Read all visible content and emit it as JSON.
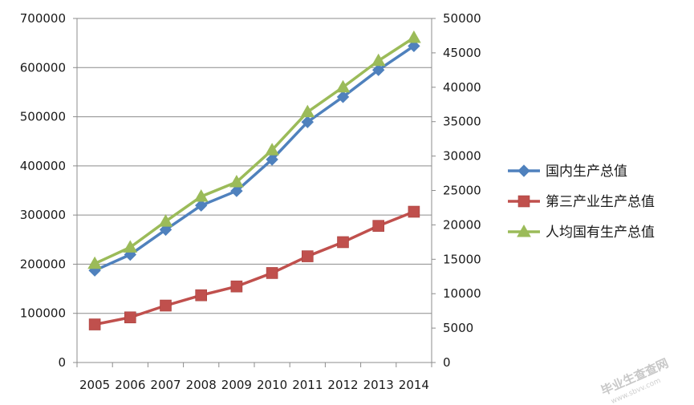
{
  "chart_data": {
    "type": "line",
    "title": "",
    "xlabel": "",
    "ylabel_left": "",
    "ylabel_right": "",
    "categories": [
      "2005",
      "2006",
      "2007",
      "2008",
      "2009",
      "2010",
      "2011",
      "2012",
      "2013",
      "2014"
    ],
    "y_left_range": [
      0,
      700000
    ],
    "y_left_ticks": [
      "0",
      "100000",
      "200000",
      "300000",
      "400000",
      "500000",
      "600000",
      "700000"
    ],
    "y_right_range": [
      0,
      50000
    ],
    "y_right_ticks": [
      "0",
      "5000",
      "10000",
      "15000",
      "20000",
      "25000",
      "30000",
      "35000",
      "40000",
      "45000",
      "50000"
    ],
    "grid": true,
    "legend_position": "right",
    "series": [
      {
        "name": "国内生产总值",
        "axis": "left",
        "marker": "diamond",
        "color": "#4f81bd",
        "values": [
          187319,
          219439,
          270232,
          319516,
          349081,
          413030,
          489301,
          540367,
          595244,
          643974
        ]
      },
      {
        "name": "第三产业生产总值",
        "axis": "left",
        "marker": "square",
        "color": "#c0504d",
        "values": [
          77428,
          91759,
          115810,
          136805,
          154748,
          182038,
          216099,
          244822,
          277959,
          306739
        ]
      },
      {
        "name": "人均国有生产总值",
        "axis": "right",
        "marker": "triangle",
        "color": "#9bbb59",
        "values": [
          14368,
          16738,
          20505,
          24121,
          26222,
          30876,
          36403,
          40007,
          43852,
          47203
        ]
      }
    ]
  },
  "watermark": {
    "text": "毕业生查查网",
    "sub": "www.sbvv.com"
  }
}
